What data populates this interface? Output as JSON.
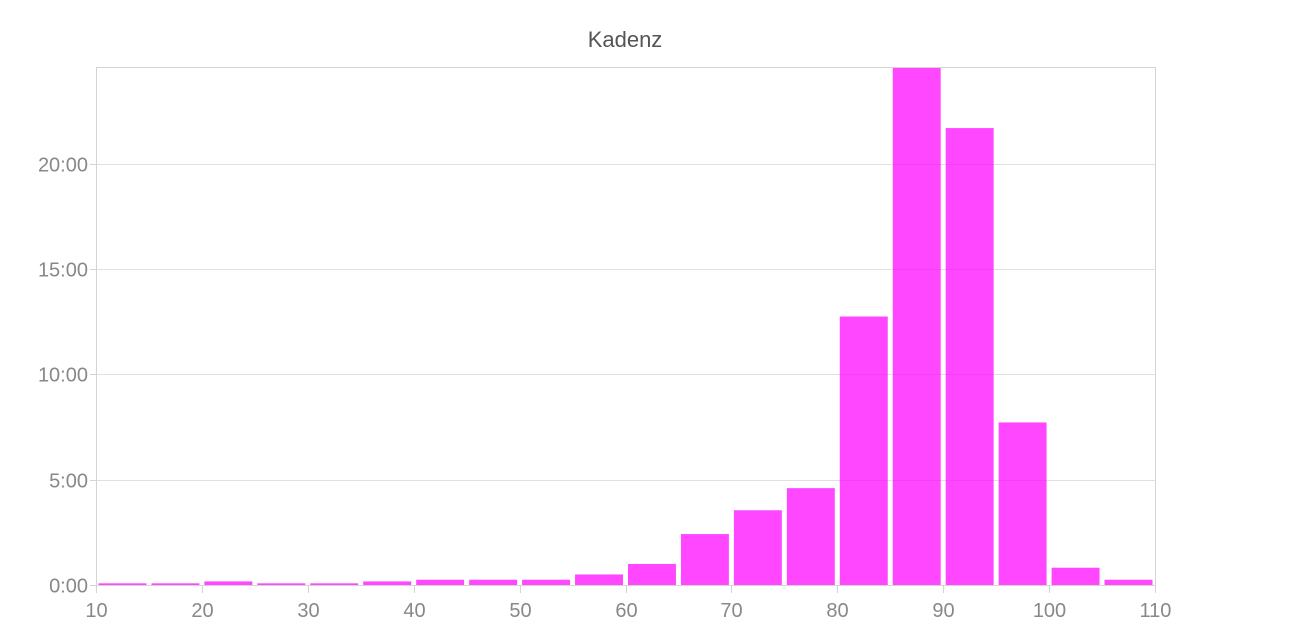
{
  "chart_data": {
    "type": "bar",
    "title": "Kadenz",
    "xlabel": "",
    "ylabel": "",
    "x_ticks": [
      "10",
      "20",
      "30",
      "40",
      "50",
      "60",
      "70",
      "80",
      "90",
      "100",
      "110"
    ],
    "y_ticks": [
      "0:00",
      "5:00",
      "10:00",
      "15:00",
      "20:00"
    ],
    "x_range": [
      10,
      110
    ],
    "y_range_minutes": [
      0,
      24.6
    ],
    "bin_width": 5,
    "series": [
      {
        "bin_starts": [
          10,
          15,
          20,
          25,
          30,
          35,
          40,
          45,
          50,
          55,
          60,
          65,
          70,
          75,
          80,
          85,
          90,
          95,
          100,
          105
        ],
        "values_minutes": [
          0.08,
          0.08,
          0.17,
          0.08,
          0.08,
          0.17,
          0.25,
          0.25,
          0.25,
          0.5,
          1.0,
          2.42,
          3.55,
          4.6,
          12.75,
          24.6,
          21.7,
          7.72,
          0.82,
          0.25
        ]
      }
    ],
    "grid": true,
    "legend": "none",
    "bar_color": "#ff00ff"
  }
}
